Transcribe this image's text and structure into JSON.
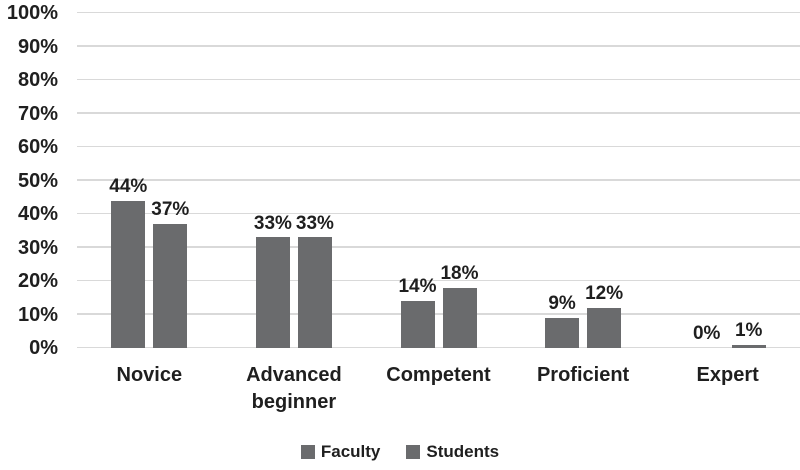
{
  "chart_data": {
    "type": "bar",
    "title": "",
    "xlabel": "",
    "ylabel": "",
    "categories": [
      "Novice",
      "Advanced beginner",
      "Competent",
      "Proficient",
      "Expert"
    ],
    "series": [
      {
        "name": "Faculty",
        "values": [
          44,
          33,
          14,
          9,
          0
        ],
        "labels": [
          "44%",
          "33%",
          "14%",
          "9%",
          "0%"
        ]
      },
      {
        "name": "Students",
        "values": [
          37,
          33,
          18,
          12,
          1
        ],
        "labels": [
          "37%",
          "33%",
          "18%",
          "12%",
          "1%"
        ]
      }
    ],
    "y_ticks": [
      "0%",
      "10%",
      "20%",
      "30%",
      "40%",
      "50%",
      "60%",
      "70%",
      "80%",
      "90%",
      "100%"
    ],
    "ylim": [
      0,
      100
    ],
    "grid": true,
    "legend_position": "bottom",
    "colors": {
      "bar": "#6a6b6d",
      "gridline": "#d9d9d9",
      "text": "#1f1f1f",
      "background": "#ffffff"
    }
  }
}
